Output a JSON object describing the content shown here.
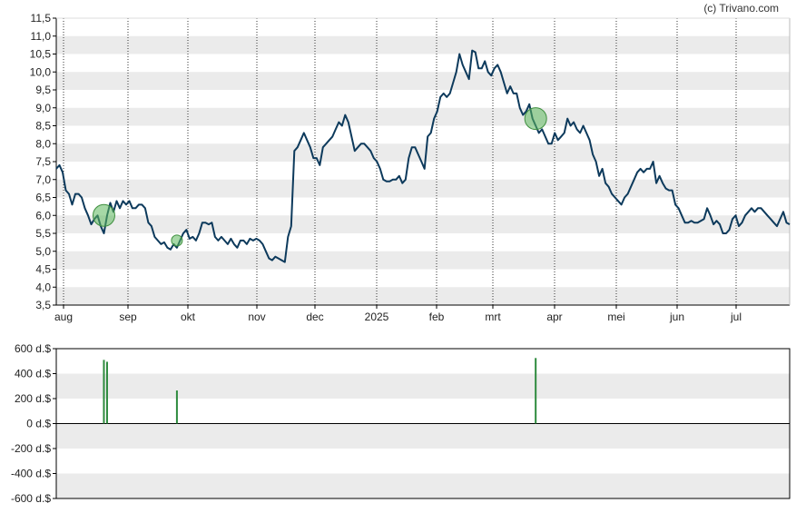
{
  "credit": "(c) Trivano.com",
  "colors": {
    "price_line": "#0d3a5c",
    "band": "#ebebeb",
    "marker_fill": "#5cb85c",
    "insider_bar": "#2e8b3e",
    "axis": "#000000"
  },
  "chart_data": [
    {
      "type": "line",
      "title": "",
      "xlabel": "",
      "ylabel": "",
      "ylim": [
        3.5,
        11.5
      ],
      "y_ticks": [
        "3,5",
        "4,0",
        "4,5",
        "5,0",
        "5,5",
        "6,0",
        "6,5",
        "7,0",
        "7,5",
        "8,0",
        "8,5",
        "9,0",
        "9,5",
        "10,0",
        "10,5",
        "11,0",
        "11,5"
      ],
      "x_ticks": [
        "aug",
        "sep",
        "okt",
        "nov",
        "dec",
        "2025",
        "feb",
        "mrt",
        "apr",
        "mei",
        "jun",
        "jul"
      ],
      "grid": "horizontal bands and dotted vertical month lines",
      "series": [
        {
          "values": [
            7.3,
            7.4,
            7.2,
            6.7,
            6.6,
            6.3,
            6.6,
            6.6,
            6.5,
            6.2,
            6.0,
            5.75,
            5.9,
            6.0,
            5.7,
            5.5,
            6.0,
            6.35,
            6.1,
            6.4,
            6.2,
            6.4,
            6.3,
            6.4,
            6.2,
            6.2,
            6.3,
            6.3,
            6.2,
            5.8,
            5.7,
            5.4,
            5.3,
            5.2,
            5.25,
            5.1,
            5.05,
            5.2,
            5.1,
            5.3,
            5.5,
            5.6,
            5.35,
            5.4,
            5.3,
            5.5,
            5.8,
            5.8,
            5.75,
            5.8,
            5.4,
            5.3,
            5.4,
            5.3,
            5.2,
            5.35,
            5.2,
            5.1,
            5.3,
            5.3,
            5.2,
            5.35,
            5.3,
            5.35,
            5.3,
            5.2,
            5.0,
            4.8,
            4.75,
            4.85,
            4.8,
            4.75,
            4.7,
            5.4,
            5.7,
            7.8,
            7.9,
            8.1,
            8.3,
            8.1,
            7.9,
            7.6,
            7.6,
            7.4,
            7.9,
            8.0,
            8.1,
            8.2,
            8.4,
            8.6,
            8.5,
            8.8,
            8.6,
            8.2,
            7.8,
            7.9,
            8.0,
            8.0,
            7.9,
            7.8,
            7.6,
            7.5,
            7.3,
            7.0,
            6.95,
            6.95,
            7.0,
            7.0,
            7.1,
            6.9,
            7.0,
            7.6,
            7.9,
            7.9,
            7.7,
            7.5,
            7.3,
            8.2,
            8.3,
            8.7,
            8.9,
            9.3,
            9.4,
            9.3,
            9.4,
            9.7,
            10.0,
            10.5,
            10.2,
            10.0,
            9.8,
            10.6,
            10.55,
            10.1,
            10.1,
            10.3,
            10.0,
            9.9,
            10.1,
            10.2,
            10.0,
            9.7,
            9.4,
            9.6,
            9.4,
            9.4,
            9.0,
            8.8,
            8.9,
            9.1,
            8.7,
            8.5,
            8.3,
            8.4,
            8.2,
            8.0,
            8.0,
            8.3,
            8.1,
            8.2,
            8.3,
            8.7,
            8.5,
            8.6,
            8.4,
            8.3,
            8.5,
            8.3,
            8.1,
            7.7,
            7.5,
            7.1,
            7.3,
            6.9,
            6.8,
            6.6,
            6.5,
            6.4,
            6.3,
            6.5,
            6.6,
            6.8,
            7.0,
            7.2,
            7.3,
            7.2,
            7.3,
            7.3,
            7.5,
            6.9,
            7.1,
            6.9,
            6.75,
            6.7,
            6.7,
            6.3,
            6.2,
            6.0,
            5.8,
            5.8,
            5.85,
            5.8,
            5.8,
            5.85,
            5.9,
            6.2,
            6.0,
            5.75,
            5.85,
            5.75,
            5.5,
            5.5,
            5.6,
            5.9,
            6.0,
            5.7,
            5.8,
            6.0,
            6.1,
            6.2,
            6.1,
            6.2,
            6.2,
            6.1,
            6.0,
            5.9,
            5.8,
            5.7,
            5.9,
            6.1,
            5.8,
            5.75
          ],
          "color": "#0d3a5c"
        }
      ],
      "markers": [
        {
          "x_index": 15,
          "value": 6.0,
          "size": "large"
        },
        {
          "x_index": 38,
          "value": 5.3,
          "size": "small"
        },
        {
          "x_index": 151,
          "value": 8.7,
          "size": "large"
        }
      ]
    },
    {
      "type": "bar",
      "title": "",
      "xlabel": "",
      "ylabel": "",
      "ylim": [
        -600,
        600
      ],
      "y_ticks": [
        "600 d.$",
        "400 d.$",
        "200 d.$",
        "0 d.$",
        "-200 d.$",
        "-400 d.$",
        "-600 d.$"
      ],
      "series": [
        {
          "points": [
            {
              "x_index": 15,
              "value": 510
            },
            {
              "x_index": 16,
              "value": 495
            },
            {
              "x_index": 38,
              "value": 265
            },
            {
              "x_index": 151,
              "value": 525
            }
          ],
          "color": "#2e8b3e"
        }
      ]
    }
  ]
}
